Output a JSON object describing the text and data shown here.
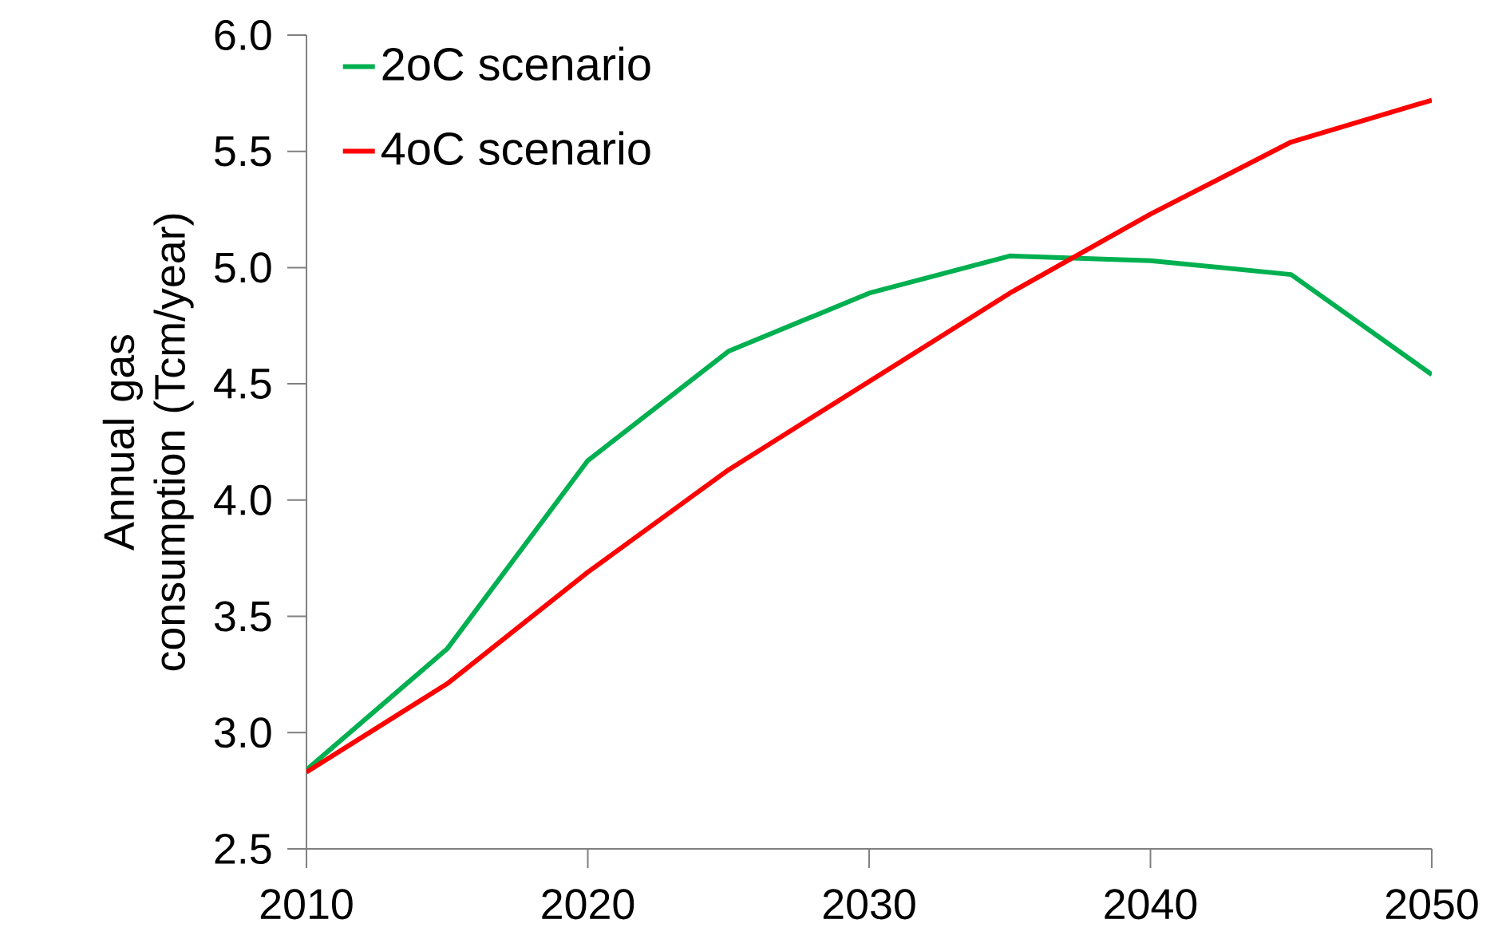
{
  "chart_data": {
    "type": "line",
    "ylabel": "Annual gas consumption (Tcm/year)",
    "x": [
      2010,
      2015,
      2020,
      2025,
      2030,
      2035,
      2040,
      2045,
      2050
    ],
    "series": [
      {
        "name": "2oC scenario",
        "color": "#00b050",
        "values": [
          2.84,
          3.36,
          4.17,
          4.64,
          4.89,
          5.05,
          5.03,
          4.97,
          4.54
        ]
      },
      {
        "name": "4oC scenario",
        "color": "#ff0000",
        "values": [
          2.83,
          3.21,
          3.69,
          4.13,
          4.51,
          4.89,
          5.23,
          5.54,
          5.72
        ]
      }
    ],
    "xlim": [
      2010,
      2050
    ],
    "xticks": [
      2010,
      2020,
      2030,
      2040,
      2050
    ],
    "ylim": [
      2.5,
      6.0
    ],
    "yticks": [
      {
        "value": 2.5,
        "label": "2.5"
      },
      {
        "value": 3.0,
        "label": "3.0"
      },
      {
        "value": 3.5,
        "label": "3.5"
      },
      {
        "value": 4.0,
        "label": "4.0"
      },
      {
        "value": 4.5,
        "label": "4.5"
      },
      {
        "value": 5.0,
        "label": "5.0"
      },
      {
        "value": 5.5,
        "label": "5.5"
      },
      {
        "value": 6.0,
        "label": "6.0"
      }
    ],
    "grid": false,
    "legend": "top left",
    "marker": "none",
    "line_style": "solid"
  }
}
